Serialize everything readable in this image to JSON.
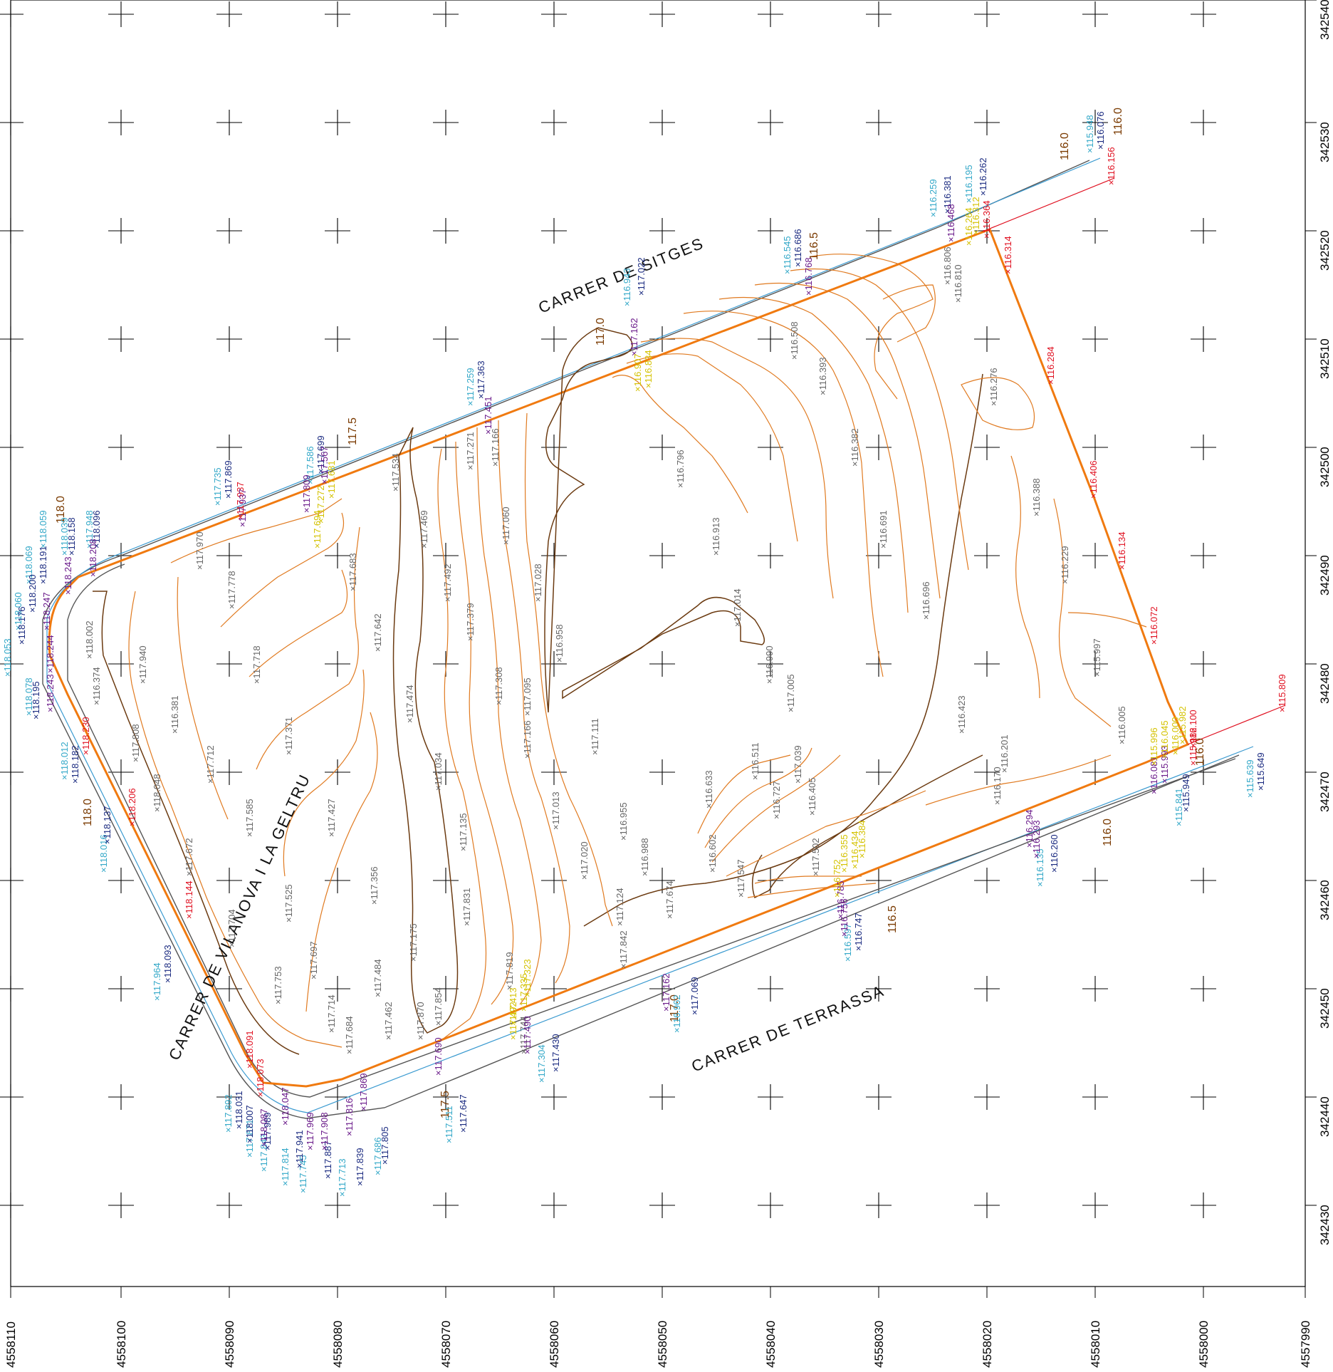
{
  "colors": {
    "grid": "#000000",
    "contour_minor": "#e07a20",
    "contour_major": "#6b3a10",
    "boundary": "#f07a10",
    "curb": "#555555",
    "curb_blue": "#3a9ad0",
    "red_line": "#e01020",
    "spot_gray": "#666666",
    "spot_red": "#e01020",
    "spot_cyan": "#33a8c8",
    "spot_navy": "#1a2a80",
    "spot_purple": "#6a1a8a",
    "spot_yellow": "#e6d400",
    "contour_label": "#7a3a00"
  },
  "axes": {
    "x_labels": [
      "4558110",
      "4558100",
      "4558090",
      "4558080",
      "4558070",
      "4558060",
      "4558050",
      "4558040",
      "4558030",
      "4558020",
      "4558010",
      "4558000",
      "4557990"
    ],
    "y_labels": [
      "342540",
      "342530",
      "342520",
      "342510",
      "342500",
      "342490",
      "342480",
      "342470",
      "342460",
      "342450",
      "342440",
      "342430"
    ]
  },
  "streets": {
    "sitges": "CARRER  DE  SITGES",
    "terrassa": "CARRER  DE  TERRASSA",
    "vilanova": "CARRER  DE  VILANOVA  I  LA  GELTRU"
  },
  "contour_labels": [
    "118.0",
    "117.5",
    "117.0",
    "116.5",
    "116.0",
    "116.0",
    "118.0",
    "117.5",
    "117.0",
    "116.5",
    "116.0",
    "116.0"
  ],
  "spot_heights": {
    "interior": [
      "117.970",
      "117.778",
      "117.683",
      "117.534",
      "117.469",
      "117.271",
      "117.166",
      "117.060",
      "117.028",
      "116.958",
      "116.796",
      "116.913",
      "117.014",
      "116.508",
      "116.393",
      "116.382",
      "116.691",
      "116.696",
      "116.423",
      "116.276",
      "116.388",
      "116.229",
      "115.997",
      "116.005",
      "116.201",
      "116.170",
      "118.002",
      "117.940",
      "117.718",
      "117.642",
      "117.492",
      "117.379",
      "117.308",
      "117.095",
      "117.111",
      "116.990",
      "117.005",
      "117.039",
      "116.633",
      "116.511",
      "116.727",
      "116.602",
      "116.405",
      "117.547",
      "117.502",
      "117.371",
      "117.474",
      "117.166",
      "117.034",
      "117.013",
      "116.955",
      "116.988",
      "117.674",
      "117.712",
      "117.585",
      "117.427",
      "117.135",
      "117.020",
      "117.124",
      "117.842",
      "117.672",
      "117.525",
      "117.356",
      "117.831",
      "117.704",
      "117.697",
      "117.484",
      "117.175",
      "117.819",
      "117.744",
      "117.753",
      "117.714",
      "117.684",
      "117.462",
      "117.870",
      "117.854",
      "117.808",
      "118.048",
      "116.381",
      "116.374",
      "116.806",
      "116.810"
    ],
    "red": [
      "116.156",
      "116.364",
      "116.314",
      "116.284",
      "116.406",
      "116.134",
      "116.072",
      "116.100",
      "115.982",
      "115.809",
      "118.206",
      "118.230",
      "118.144",
      "118.091",
      "118.073",
      "117.937"
    ],
    "cyan": [
      "115.948",
      "116.259",
      "116.195",
      "116.545",
      "116.943",
      "117.259",
      "117.586",
      "117.735",
      "118.059",
      "118.069",
      "118.039",
      "117.948",
      "118.060",
      "118.053",
      "118.078",
      "118.012",
      "118.016",
      "117.964",
      "117.892",
      "117.871",
      "117.843",
      "117.814",
      "117.745",
      "117.713",
      "117.686",
      "117.511",
      "117.304",
      "116.962",
      "116.597",
      "116.135",
      "115.841",
      "115.639"
    ],
    "navy": [
      "116.076",
      "116.381",
      "116.262",
      "116.686",
      "117.022",
      "117.363",
      "117.699",
      "117.869",
      "118.096",
      "118.158",
      "118.191",
      "118.200",
      "118.176",
      "118.195",
      "118.182",
      "118.137",
      "118.093",
      "118.031",
      "118.007",
      "117.989",
      "117.941",
      "117.887",
      "117.839",
      "117.805",
      "117.647",
      "117.430",
      "117.069",
      "116.747",
      "116.260",
      "115.949",
      "115.649"
    ],
    "purple": [
      "116.468",
      "116.768",
      "117.162",
      "117.451",
      "117.809",
      "117.567",
      "117.937",
      "118.208",
      "118.243",
      "118.247",
      "118.244",
      "118.243",
      "118.087",
      "118.047",
      "117.969",
      "117.908",
      "117.816",
      "117.869",
      "117.690",
      "117.490",
      "117.162",
      "116.785",
      "116.756",
      "116.294",
      "116.081",
      "115.993",
      "116.293"
    ],
    "yellow": [
      "116.264",
      "116.312",
      "116.907",
      "116.834",
      "117.272",
      "117.694",
      "117.681",
      "117.413",
      "117.335",
      "117.323",
      "117.492",
      "116.355",
      "116.434",
      "116.384",
      "115.996",
      "116.045",
      "116.000",
      "115.982",
      "116.752"
    ]
  }
}
